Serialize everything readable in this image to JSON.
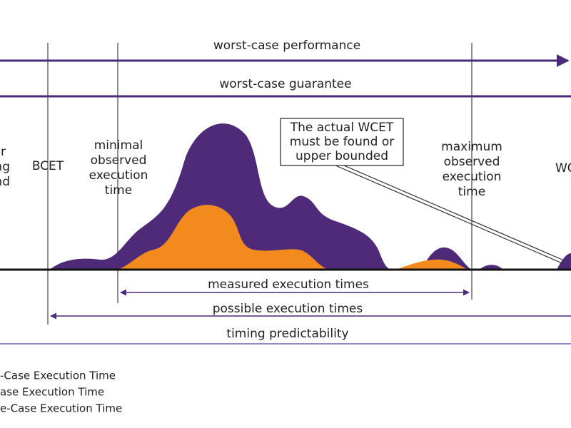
{
  "arrows": {
    "top": "worst-case performance",
    "second": "worst-case guarantee",
    "measured": "measured execution times",
    "possible": "possible execution times",
    "predictability": "timing predictability"
  },
  "labels": {
    "left_cut": [
      "er",
      "ng",
      "nd"
    ],
    "bcet": "BCET",
    "minimal": [
      "minimal",
      "observed",
      "execution",
      "time"
    ],
    "maximum": [
      "maximum",
      "observed",
      "execution",
      "time"
    ],
    "right_cut": "WC"
  },
  "callout": [
    "The actual WCET",
    "must be found or",
    "upper bounded"
  ],
  "legend": [
    "-Case Execution Time",
    "ase Execution Time",
    "e-Case Execution Time"
  ]
}
